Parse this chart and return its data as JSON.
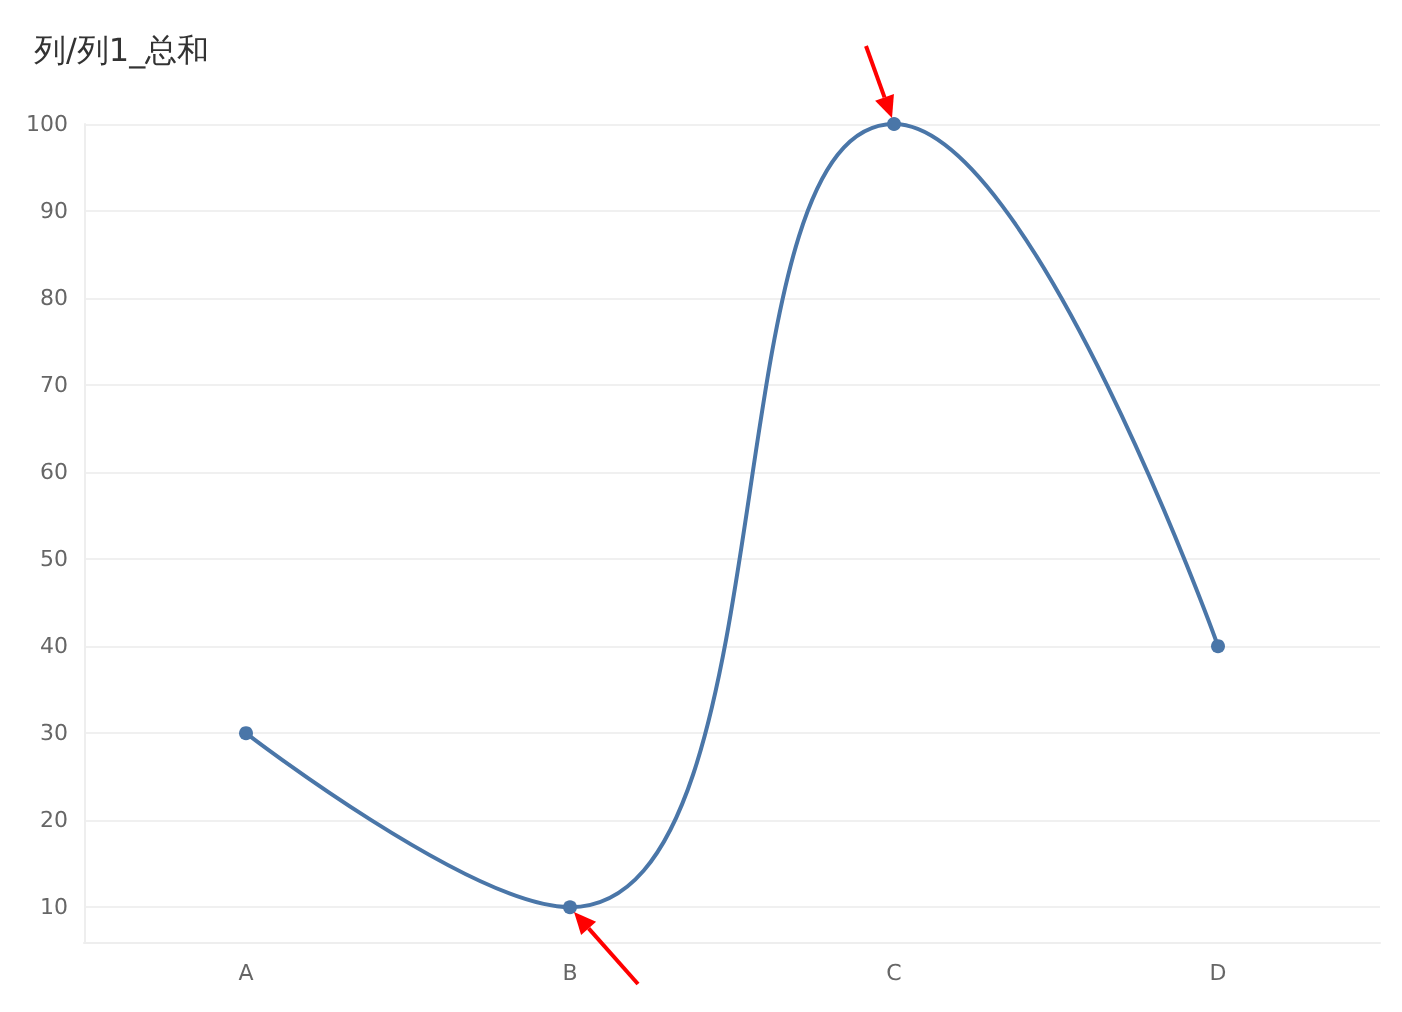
{
  "chart_data": {
    "type": "line",
    "title": "列/列1_总和",
    "categories": [
      "A",
      "B",
      "C",
      "D"
    ],
    "series": [
      {
        "color": "#4a76a8",
        "values": [
          30,
          10,
          100,
          40
        ]
      }
    ],
    "ylim": [
      6,
      100
    ],
    "yticks": [
      10,
      20,
      30,
      40,
      50,
      60,
      70,
      80,
      90,
      100
    ],
    "grid": "y",
    "marker": "circle",
    "line_style": "solid"
  }
}
